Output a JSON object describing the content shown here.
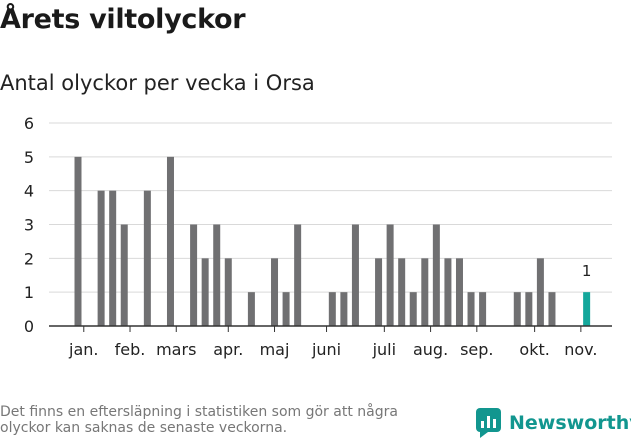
{
  "header": {
    "title": "Årets viltolyckor",
    "subtitle": "Antal olyckor per vecka i Orsa"
  },
  "footer": {
    "note": "Det finns en eftersläpning i statistiken som gör att några olyckor kan saknas de senaste veckorna.",
    "brand": "Newsworthy"
  },
  "colors": {
    "bar": "#707072",
    "highlight": "#14a79b",
    "brand": "#12968f",
    "grid": "#d9d9d9"
  },
  "chart_data": {
    "type": "bar",
    "title": "Antal olyckor per vecka i Orsa",
    "xlabel": "",
    "ylabel": "",
    "ylim": [
      0,
      6
    ],
    "yticks": [
      0,
      1,
      2,
      3,
      4,
      5,
      6
    ],
    "grid": true,
    "x": [
      1,
      2,
      3,
      4,
      5,
      6,
      7,
      8,
      9,
      10,
      11,
      12,
      13,
      14,
      15,
      16,
      17,
      18,
      19,
      20,
      21,
      22,
      23,
      24,
      25,
      26,
      27,
      28,
      29,
      30,
      31,
      32,
      33,
      34,
      35,
      36,
      37,
      38,
      39,
      40,
      41,
      42,
      43,
      44,
      45,
      46
    ],
    "values": [
      5,
      0,
      4,
      4,
      3,
      0,
      4,
      0,
      5,
      0,
      3,
      2,
      3,
      2,
      0,
      1,
      0,
      2,
      1,
      3,
      0,
      0,
      1,
      1,
      3,
      0,
      2,
      3,
      2,
      1,
      2,
      3,
      2,
      2,
      1,
      1,
      0,
      0,
      1,
      1,
      2,
      1,
      0,
      0,
      1,
      0
    ],
    "month_labels": [
      {
        "label": "jan.",
        "x": 1.5
      },
      {
        "label": "feb.",
        "x": 5.5
      },
      {
        "label": "mars",
        "x": 9.5
      },
      {
        "label": "apr.",
        "x": 14.0
      },
      {
        "label": "maj",
        "x": 18.0
      },
      {
        "label": "juni",
        "x": 22.5
      },
      {
        "label": "juli",
        "x": 27.5
      },
      {
        "label": "aug.",
        "x": 31.5
      },
      {
        "label": "sep.",
        "x": 35.5
      },
      {
        "label": "okt.",
        "x": 40.5
      },
      {
        "label": "nov.",
        "x": 44.5
      }
    ],
    "highlight": {
      "x": 45,
      "value": 1,
      "label": "1"
    }
  }
}
